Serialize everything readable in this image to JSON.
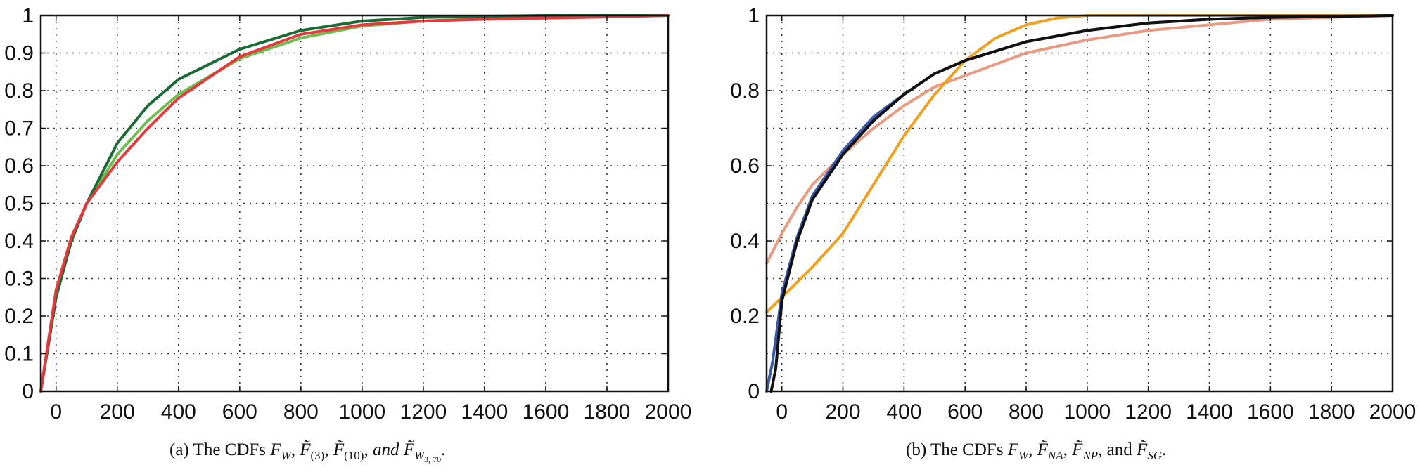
{
  "chart_data": [
    {
      "type": "line",
      "caption": "(a) The CDFs F_W, F̃_(3), F̃_(10), and F̃_{W3,70}.",
      "caption_parts": {
        "prefix": "(a) The CDFs ",
        "f_w": "F",
        "f_w_sub": "W",
        "f3": "F̃",
        "f3_sub": "(3)",
        "f10": "F̃",
        "f10_sub": "(10)",
        "and": "and",
        "fw370": "F̃",
        "fw370_sub": "W",
        "fw370_subsub": "3, 70",
        "sep": ", ",
        "end": "."
      },
      "xlim": [
        -50,
        2000
      ],
      "ylim": [
        0,
        1
      ],
      "xticks": [
        0,
        200,
        400,
        600,
        800,
        1000,
        1200,
        1400,
        1600,
        1800,
        2000
      ],
      "yticks": [
        0,
        0.1,
        0.2,
        0.3,
        0.4,
        0.5,
        0.6,
        0.7,
        0.8,
        0.9,
        1
      ],
      "ytick_labels": [
        "0",
        "0.1",
        "0.2",
        "0.3",
        "0.4",
        "0.5",
        "0.6",
        "0.7",
        "0.8",
        "0.9",
        "1"
      ],
      "grid": true,
      "series": [
        {
          "color": "#6bbf4e",
          "x": [
            -50,
            0,
            50,
            100,
            200,
            300,
            400,
            600,
            800,
            1000,
            1200,
            1400,
            1600,
            1800,
            2000
          ],
          "y": [
            0,
            0.26,
            0.4,
            0.5,
            0.63,
            0.72,
            0.79,
            0.885,
            0.94,
            0.972,
            0.985,
            0.992,
            0.996,
            0.998,
            1.0
          ]
        },
        {
          "color": "#1b6b35",
          "x": [
            -50,
            0,
            50,
            100,
            200,
            300,
            400,
            600,
            800,
            1000,
            1200,
            1400,
            1600,
            1800,
            2000
          ],
          "y": [
            0,
            0.25,
            0.4,
            0.5,
            0.66,
            0.76,
            0.83,
            0.91,
            0.96,
            0.985,
            0.995,
            0.998,
            1.0,
            1.0,
            1.0
          ]
        },
        {
          "color": "#e5393d",
          "x": [
            -50,
            0,
            50,
            100,
            200,
            300,
            400,
            600,
            800,
            1000,
            1200,
            1400,
            1600,
            1800,
            2000
          ],
          "y": [
            0,
            0.27,
            0.41,
            0.5,
            0.61,
            0.7,
            0.78,
            0.89,
            0.95,
            0.975,
            0.985,
            0.99,
            0.993,
            0.996,
            1.0
          ]
        }
      ]
    },
    {
      "type": "line",
      "caption": "(b) The CDFs F_W, F̃_NA, F̃_NP, and F̃_SG.",
      "caption_parts": {
        "prefix": "(b) The CDFs ",
        "f_w": "F",
        "f_w_sub": "W",
        "fna": "F̃",
        "fna_sub": "NA",
        "fnp": "F̃",
        "fnp_sub": "NP",
        "and": "and",
        "fsg": "F̃",
        "fsg_sub": "SG",
        "sep": ", ",
        "end": "."
      },
      "xlim": [
        -50,
        2000
      ],
      "ylim": [
        0,
        1
      ],
      "xticks": [
        0,
        200,
        400,
        600,
        800,
        1000,
        1200,
        1400,
        1600,
        1800,
        2000
      ],
      "yticks": [
        0,
        0.2,
        0.4,
        0.6,
        0.8,
        1
      ],
      "minor_grid_y": [
        0.1,
        0.3,
        0.5,
        0.7,
        0.9
      ],
      "ytick_labels": [
        "0",
        "0.2",
        "0.4",
        "0.6",
        "0.8",
        "1"
      ],
      "grid": true,
      "series": [
        {
          "color": "#e89a82",
          "x": [
            -50,
            0,
            50,
            100,
            200,
            300,
            400,
            500,
            600,
            800,
            1000,
            1200,
            1400,
            1600,
            1800,
            2000
          ],
          "y": [
            0.34,
            0.42,
            0.49,
            0.55,
            0.63,
            0.7,
            0.76,
            0.81,
            0.84,
            0.9,
            0.935,
            0.96,
            0.975,
            0.99,
            0.995,
            1.0
          ]
        },
        {
          "color": "#f0a020",
          "x": [
            -50,
            0,
            100,
            200,
            300,
            400,
            500,
            600,
            700,
            800,
            900,
            1000,
            1200,
            1500,
            2000
          ],
          "y": [
            0.21,
            0.25,
            0.33,
            0.42,
            0.55,
            0.68,
            0.79,
            0.88,
            0.94,
            0.975,
            0.993,
            1.0,
            1.0,
            1.0,
            1.0
          ]
        },
        {
          "color": "#3d5aa8",
          "x": [
            -50,
            -30,
            0,
            50,
            100,
            150,
            200,
            300,
            400,
            500,
            600,
            800,
            1000,
            1200,
            1400,
            1600,
            2000
          ],
          "y": [
            0,
            0.08,
            0.26,
            0.41,
            0.52,
            0.58,
            0.64,
            0.73,
            0.79,
            0.845,
            0.88,
            0.93,
            0.96,
            0.98,
            0.99,
            0.995,
            1.0
          ]
        },
        {
          "color": "#111111",
          "x": [
            -35,
            -20,
            0,
            50,
            100,
            150,
            200,
            300,
            400,
            500,
            600,
            800,
            1000,
            1200,
            1400,
            1600,
            2000
          ],
          "y": [
            0,
            0.06,
            0.24,
            0.4,
            0.51,
            0.57,
            0.63,
            0.72,
            0.79,
            0.845,
            0.88,
            0.93,
            0.96,
            0.98,
            0.99,
            0.995,
            1.0
          ]
        }
      ]
    }
  ]
}
